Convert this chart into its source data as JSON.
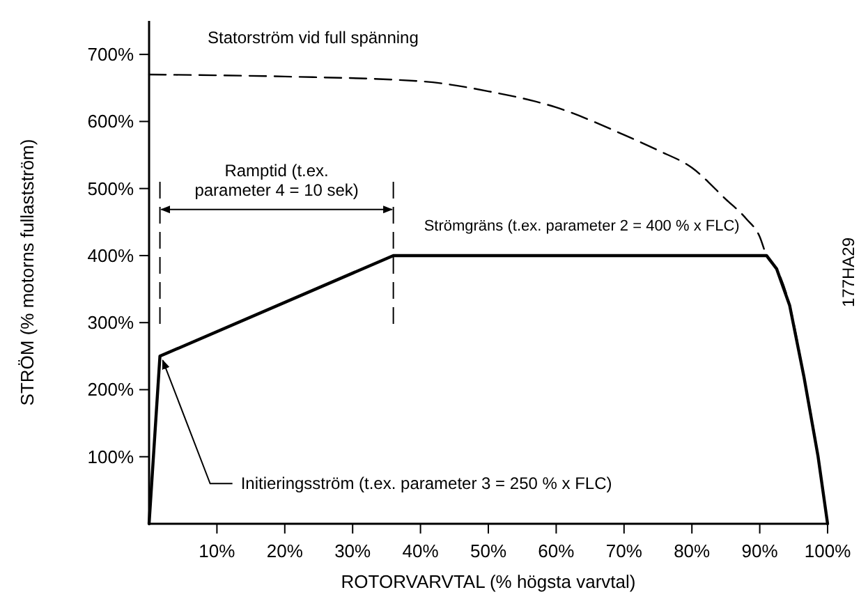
{
  "chart_data": {
    "type": "line",
    "xlabel": "ROTORVARVTAL (% högsta varvtal)",
    "ylabel": "STRÖM (% motorns fullastström)",
    "xlim": [
      0,
      100
    ],
    "ylim": [
      0,
      750
    ],
    "xticks": [
      {
        "value": 10,
        "label": "10%"
      },
      {
        "value": 20,
        "label": "20%"
      },
      {
        "value": 30,
        "label": "30%"
      },
      {
        "value": 40,
        "label": "40%"
      },
      {
        "value": 50,
        "label": "50%"
      },
      {
        "value": 60,
        "label": "60%"
      },
      {
        "value": 70,
        "label": "70%"
      },
      {
        "value": 80,
        "label": "80%"
      },
      {
        "value": 90,
        "label": "90%"
      },
      {
        "value": 100,
        "label": "100%"
      }
    ],
    "yticks": [
      {
        "value": 100,
        "label": "100%"
      },
      {
        "value": 200,
        "label": "200%"
      },
      {
        "value": 300,
        "label": "300%"
      },
      {
        "value": 400,
        "label": "400%"
      },
      {
        "value": 500,
        "label": "500%"
      },
      {
        "value": 600,
        "label": "600%"
      },
      {
        "value": 700,
        "label": "700%"
      }
    ],
    "grid": false,
    "marker": "none",
    "series": [
      {
        "color": "#000000",
        "line_style": "dashed",
        "x": [
          0,
          20,
          40,
          50,
          60,
          70,
          75,
          80,
          85,
          88,
          90,
          91,
          92.5,
          94.4,
          96.5,
          98.6,
          100
        ],
        "values": [
          670,
          667,
          660,
          645,
          621,
          580,
          557,
          531,
          484,
          455,
          428,
          400,
          380,
          326,
          220,
          100,
          0
        ]
      },
      {
        "color": "#000000",
        "line_style": "solid",
        "x": [
          0,
          1.6,
          36,
          91,
          92.5,
          94.4,
          96.5,
          98.6,
          100
        ],
        "values": [
          0,
          250,
          400,
          400,
          380,
          326,
          220,
          100,
          0
        ]
      }
    ],
    "ref_lines": [
      {
        "axis": "x",
        "value": 1.6,
        "line_style": "dashed",
        "color": "#000000"
      },
      {
        "axis": "x",
        "value": 36,
        "line_style": "dashed",
        "color": "#000000"
      }
    ],
    "annotations": [
      "Statorström vid full spänning",
      "Ramptid (t.ex.\nparameter 4 = 10 sek)",
      "Strömgräns (t.ex. parameter 2 = 400 % x FLC)",
      {
        "text": "Initieringsström (t.ex. parameter 3 = 250 % x FLC)",
        "x": 1.6,
        "y": 250
      },
      "177HA29"
    ]
  }
}
